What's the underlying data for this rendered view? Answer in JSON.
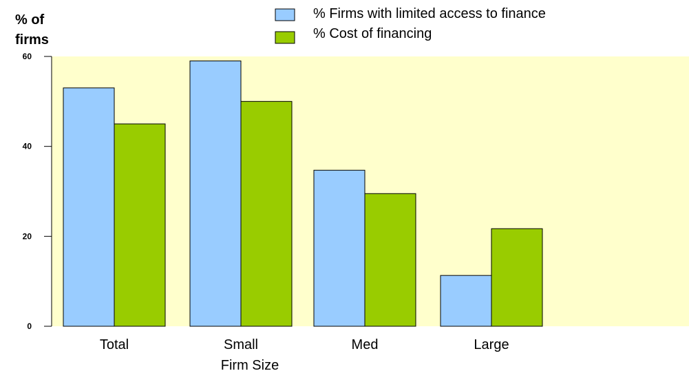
{
  "chart_data": {
    "type": "bar",
    "categories": [
      "Total",
      "Small",
      "Med",
      "Large"
    ],
    "series": [
      {
        "name": "% Firms with limited access to finance",
        "values": [
          53,
          59,
          34.7,
          11.3
        ],
        "color": "#99CCFF"
      },
      {
        "name": "% Cost of financing",
        "values": [
          45,
          50,
          29.5,
          21.7
        ],
        "color": "#99CC00"
      }
    ],
    "title": "",
    "xlabel": "Firm Size",
    "ylabel": [
      "% of",
      "firms"
    ],
    "ylim": [
      0,
      60
    ],
    "yticks": [
      0,
      20,
      40,
      60
    ],
    "plot_background": "#FFFFCC",
    "grid": false,
    "legend_position": "top"
  }
}
